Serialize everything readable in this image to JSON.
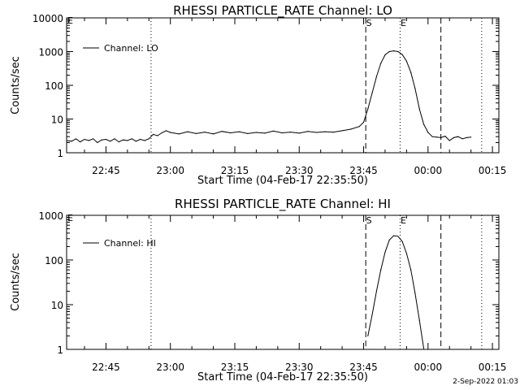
{
  "footer": {
    "timestamp": "2-Sep-2022 01:03"
  },
  "chart_data": [
    {
      "type": "line",
      "title": "RHESSI PARTICLE_RATE Channel: LO",
      "xlabel": "Start Time (04-Feb-17 22:35:50)",
      "ylabel": "Counts/sec",
      "yscale": "log",
      "ylim": [
        1,
        10000
      ],
      "xlim": [
        "22:35:50",
        "00:16:30"
      ],
      "x_ticks": [
        "22:45",
        "23:00",
        "23:15",
        "23:30",
        "23:45",
        "00:00",
        "00:15"
      ],
      "y_ticks": [
        "1",
        "10",
        "100",
        "1000",
        "10000"
      ],
      "legend": {
        "position": "top-left",
        "entries": [
          "Channel: LO"
        ]
      },
      "line_color": "#000000",
      "event_markers": [
        {
          "time": "23:45:30",
          "style": "dashed",
          "label": "S"
        },
        {
          "time": "23:53:30",
          "style": "dotted",
          "label": "E"
        },
        {
          "time": "00:03:00",
          "style": "dashed",
          "label": ""
        },
        {
          "time": "22:55:30",
          "style": "dotted",
          "label": ""
        },
        {
          "time": "00:12:30",
          "style": "dotted",
          "label": ""
        }
      ],
      "series": [
        {
          "name": "Channel: LO",
          "x": [
            "22:35:50",
            "22:37:00",
            "22:38:00",
            "22:39:00",
            "22:40:00",
            "22:41:00",
            "22:42:00",
            "22:43:00",
            "22:44:00",
            "22:45:00",
            "22:46:00",
            "22:47:00",
            "22:48:00",
            "22:49:00",
            "22:50:00",
            "22:51:00",
            "22:52:00",
            "22:53:00",
            "22:54:00",
            "22:55:00",
            "22:56:00",
            "22:57:00",
            "22:58:00",
            "22:59:00",
            "23:00:00",
            "23:02:00",
            "23:04:00",
            "23:06:00",
            "23:08:00",
            "23:10:00",
            "23:12:00",
            "23:14:00",
            "23:16:00",
            "23:18:00",
            "23:20:00",
            "23:22:00",
            "23:24:00",
            "23:26:00",
            "23:28:00",
            "23:30:00",
            "23:32:00",
            "23:34:00",
            "23:36:00",
            "23:38:00",
            "23:40:00",
            "23:42:00",
            "23:44:00",
            "23:45:00",
            "23:46:00",
            "23:47:00",
            "23:48:00",
            "23:49:00",
            "23:50:00",
            "23:51:00",
            "23:52:00",
            "23:53:00",
            "23:54:00",
            "23:55:00",
            "23:56:00",
            "23:57:00",
            "23:58:00",
            "23:59:00",
            "00:00:00",
            "00:01:00",
            "00:02:00",
            "00:03:00",
            "00:04:00",
            "00:05:00",
            "00:06:00",
            "00:07:00",
            "00:08:00",
            "00:09:00",
            "00:10:00"
          ],
          "y": [
            2.3,
            2.2,
            2.6,
            2.1,
            2.5,
            2.3,
            2.6,
            2.0,
            2.4,
            2.5,
            2.2,
            2.6,
            2.1,
            2.4,
            2.3,
            2.6,
            2.2,
            2.5,
            2.3,
            2.6,
            3.5,
            3.2,
            3.9,
            4.5,
            4.0,
            3.6,
            4.2,
            3.7,
            4.1,
            3.6,
            4.3,
            3.9,
            4.2,
            3.7,
            4.0,
            3.8,
            4.4,
            3.9,
            4.1,
            3.8,
            4.3,
            4.0,
            4.2,
            4.1,
            4.5,
            5.0,
            6.0,
            8,
            20,
            60,
            180,
            450,
            800,
            1000,
            1050,
            1000,
            820,
            520,
            240,
            80,
            20,
            7,
            4,
            3,
            2.9,
            2.8,
            3.1,
            2.3,
            2.8,
            3.0,
            2.6,
            2.8,
            2.9
          ]
        }
      ]
    },
    {
      "type": "line",
      "title": "RHESSI PARTICLE_RATE Channel: HI",
      "xlabel": "Start Time (04-Feb-17 22:35:50)",
      "ylabel": "Counts/sec",
      "yscale": "log",
      "ylim": [
        1,
        1000
      ],
      "xlim": [
        "22:35:50",
        "00:16:30"
      ],
      "x_ticks": [
        "22:45",
        "23:00",
        "23:15",
        "23:30",
        "23:45",
        "00:00",
        "00:15"
      ],
      "y_ticks": [
        "1",
        "10",
        "100",
        "1000"
      ],
      "legend": {
        "position": "top-left",
        "entries": [
          "Channel: HI"
        ]
      },
      "line_color": "#000000",
      "event_markers": [
        {
          "time": "23:45:30",
          "style": "dashed",
          "label": "S"
        },
        {
          "time": "23:53:30",
          "style": "dotted",
          "label": "E"
        },
        {
          "time": "00:03:00",
          "style": "dashed",
          "label": ""
        },
        {
          "time": "22:55:30",
          "style": "dotted",
          "label": ""
        },
        {
          "time": "00:12:30",
          "style": "dotted",
          "label": ""
        }
      ],
      "series": [
        {
          "name": "Channel: HI",
          "x": [
            "23:46:00",
            "23:47:00",
            "23:48:00",
            "23:49:00",
            "23:50:00",
            "23:51:00",
            "23:52:00",
            "23:53:00",
            "23:54:00",
            "23:55:00",
            "23:56:00",
            "23:57:00",
            "23:58:00",
            "23:59:00"
          ],
          "y": [
            2.0,
            6,
            20,
            60,
            150,
            280,
            350,
            340,
            260,
            140,
            60,
            18,
            4.5,
            1.05
          ]
        }
      ]
    }
  ]
}
